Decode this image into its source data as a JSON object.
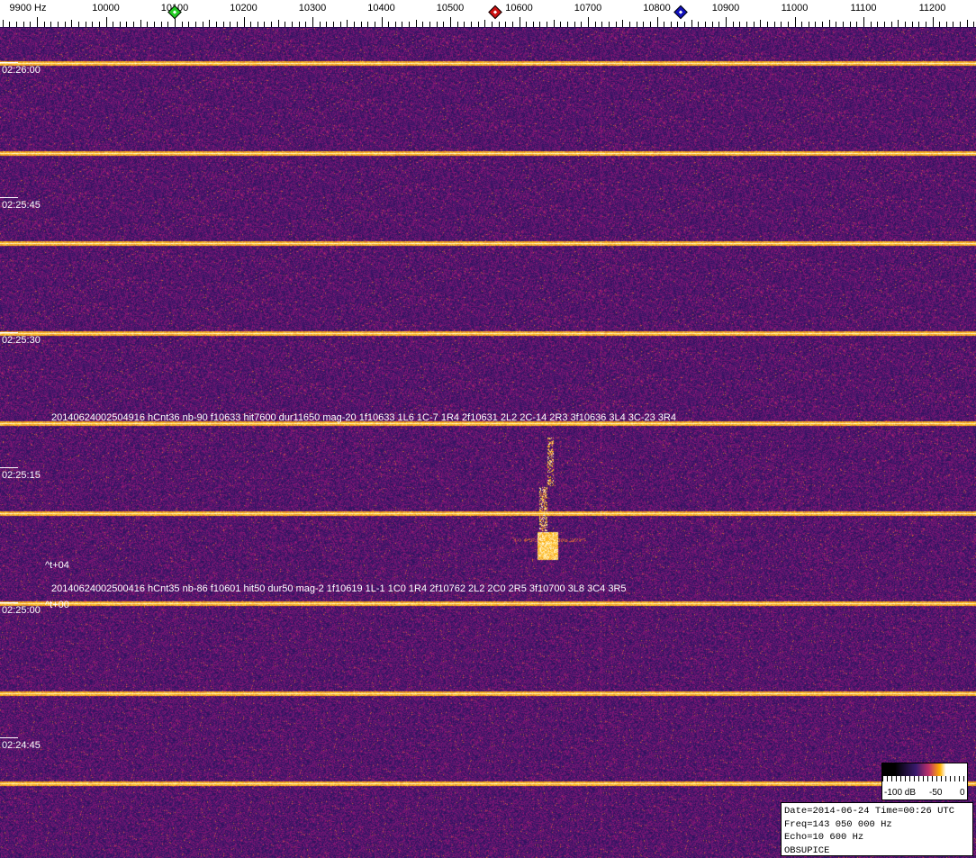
{
  "chart_data": {
    "type": "heatmap",
    "kind": "spectrogram waterfall",
    "x_unit": "Hz",
    "x_ticks": [
      9900,
      10000,
      10100,
      10200,
      10300,
      10400,
      10500,
      10600,
      10700,
      10800,
      10900,
      11000,
      11100,
      11200
    ],
    "x_tick_labels": [
      "9900  Hz",
      "10000",
      "10100",
      "10200",
      "10300",
      "10400",
      "10500",
      "10600",
      "10700",
      "10800",
      "10900",
      "11000",
      "11100",
      "11200"
    ],
    "xlim": [
      9850,
      11265
    ],
    "y_time_labels": [
      "02:26:00",
      "02:25:45",
      "02:25:30",
      "02:25:15",
      "02:25:00",
      "02:24:45"
    ],
    "markers": [
      {
        "freq": 10100,
        "color": "#22cc22"
      },
      {
        "freq": 10565,
        "color": "#cc1111"
      },
      {
        "freq": 10835,
        "color": "#1111bb"
      }
    ],
    "annotations": [
      {
        "text": "20140624002504916 hCnt36 nb-90 f10633 hit7600 dur11650 mag-20 1f10633 1L6 1C-7 1R4 2f10631 2L2 2C-14 2R3 3f10636 3L4 3C-23 3R4"
      },
      {
        "text": "^t+04"
      },
      {
        "text": "20140624002500416 hCnt35 nb-86 f10601 hit50 dur50 mag-2 1f10619 1L-1 1C0 1R4 2f10762 2L2 2C0 2R5 3f10700 3L8 3C4 3R5"
      },
      {
        "text": "^t+00"
      }
    ],
    "colorscale": {
      "labels": [
        "-100 dB",
        "-50",
        "0"
      ],
      "colors": [
        "#000000",
        "#3a1a6e",
        "#c0306a",
        "#ffb000",
        "#ffffff"
      ]
    }
  },
  "info": {
    "line1": "Date=2014-06-24 Time=00:26 UTC",
    "line2": "Freq=143 050 000 Hz",
    "line3": "Echo=10 600 Hz",
    "line4": "OBSUPICE"
  }
}
